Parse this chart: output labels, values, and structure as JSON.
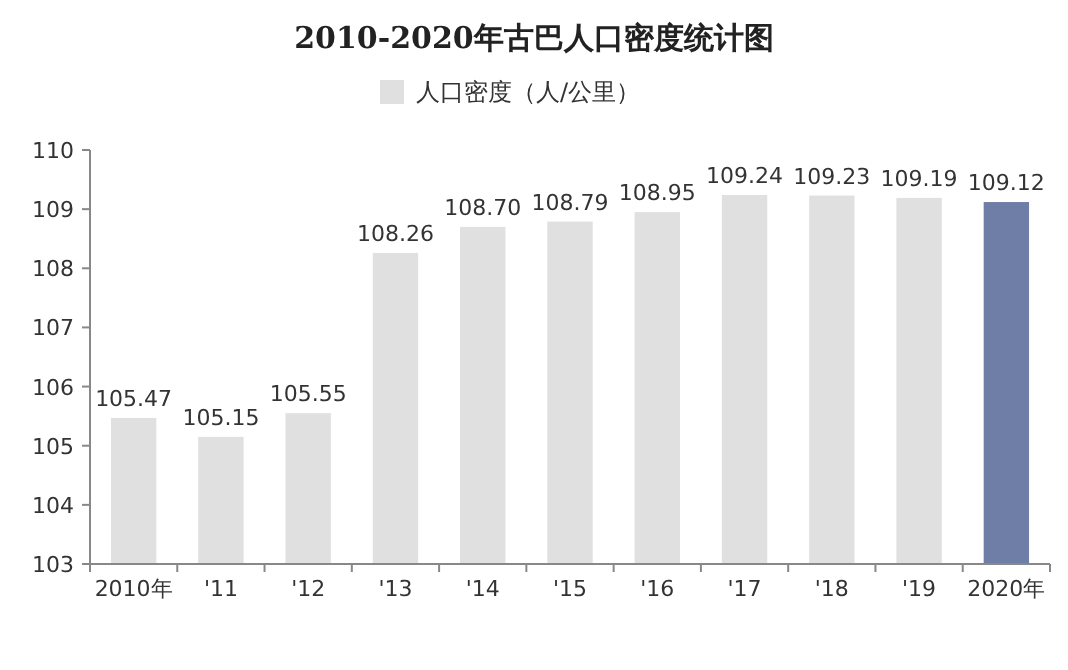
{
  "chart_data": {
    "type": "bar",
    "title": "2010-2020年古巴人口密度统计图",
    "categories": [
      "2010年",
      "'11",
      "'12",
      "'13",
      "'14",
      "'15",
      "'16",
      "'17",
      "'18",
      "'19",
      "2020年"
    ],
    "series": [
      {
        "name": "人口密度（人/公里）",
        "color": "#e0e0e0",
        "colors": [
          "#e0e0e0",
          "#e0e0e0",
          "#e0e0e0",
          "#e0e0e0",
          "#e0e0e0",
          "#e0e0e0",
          "#e0e0e0",
          "#e0e0e0",
          "#e0e0e0",
          "#e0e0e0",
          "#6f7ea6"
        ],
        "values": [
          105.47,
          105.15,
          105.55,
          108.26,
          108.7,
          108.79,
          108.95,
          109.24,
          109.23,
          109.19,
          109.12
        ],
        "value_labels": [
          "105.47",
          "105.15",
          "105.55",
          "108.26",
          "108.70",
          "108.79",
          "108.95",
          "109.24",
          "109.23",
          "109.19",
          "109.12"
        ]
      }
    ],
    "ylim": [
      103,
      110
    ],
    "yticks": [
      103,
      104,
      105,
      106,
      107,
      108,
      109,
      110
    ],
    "legend": "top",
    "grid": false
  }
}
